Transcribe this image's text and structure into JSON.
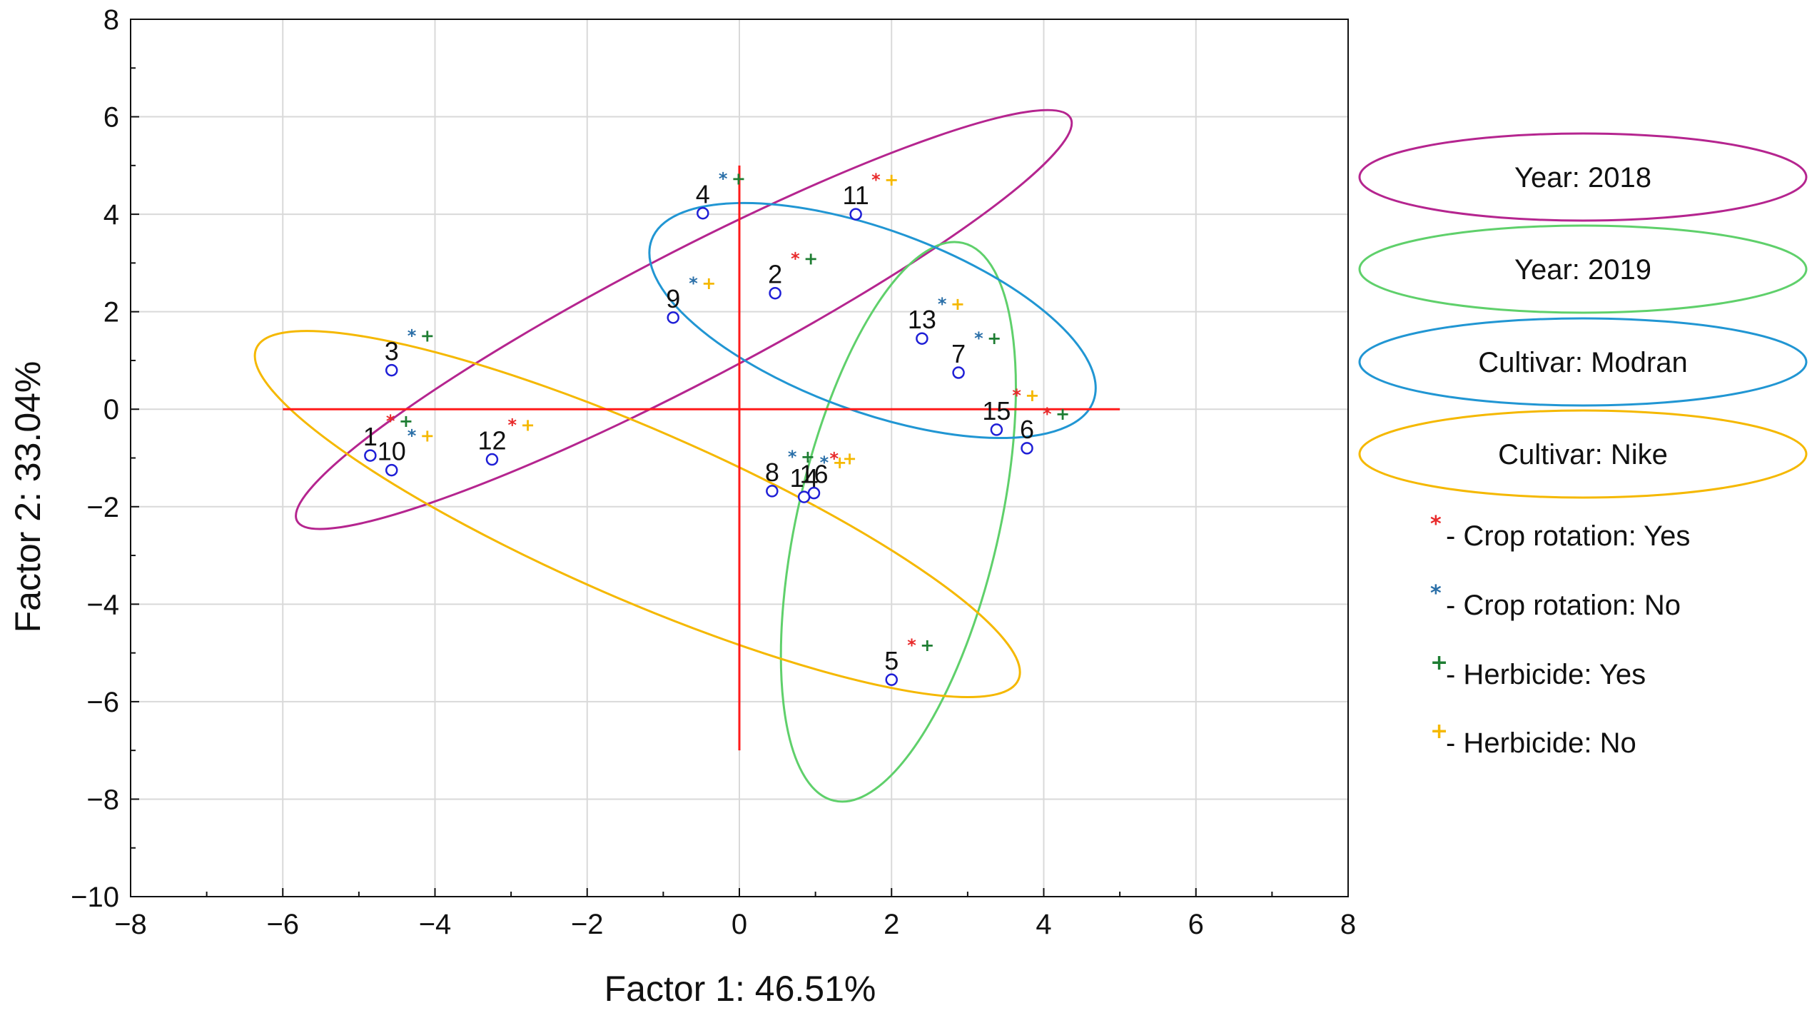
{
  "chart_data": {
    "type": "scatter",
    "xlabel": "Factor 1: 46.51%",
    "ylabel": "Factor 2: 33.04%",
    "xlim": [
      -8,
      8
    ],
    "ylim": [
      -10,
      8
    ],
    "xticks": [
      -8,
      -6,
      -4,
      -2,
      0,
      2,
      4,
      6,
      8
    ],
    "yticks": [
      -10,
      -8,
      -6,
      -4,
      -2,
      0,
      2,
      4,
      6,
      8
    ],
    "xtick_labels": [
      "−8",
      "−6",
      "−4",
      "−2",
      "0",
      "2",
      "4",
      "6",
      "8"
    ],
    "ytick_labels": [
      "−10",
      "−8",
      "−6",
      "−4",
      "−2",
      "0",
      "2",
      "4",
      "6",
      "8"
    ],
    "grid": true,
    "crosshair": {
      "h": [
        -6,
        5
      ],
      "v": [
        -7,
        5
      ]
    },
    "points": [
      {
        "label": "1",
        "x": -4.85,
        "y": -0.95,
        "rotation": "Yes",
        "herbicide": "Yes"
      },
      {
        "label": "2",
        "x": 0.47,
        "y": 2.38,
        "rotation": "Yes",
        "herbicide": "Yes"
      },
      {
        "label": "3",
        "x": -4.57,
        "y": 0.8,
        "rotation": "No",
        "herbicide": "Yes"
      },
      {
        "label": "4",
        "x": -0.48,
        "y": 4.02,
        "rotation": "No",
        "herbicide": "Yes"
      },
      {
        "label": "5",
        "x": 2.0,
        "y": -5.55,
        "rotation": "Yes",
        "herbicide": "Yes"
      },
      {
        "label": "6",
        "x": 3.78,
        "y": -0.8,
        "rotation": "Yes",
        "herbicide": "Yes"
      },
      {
        "label": "7",
        "x": 2.88,
        "y": 0.75,
        "rotation": "No",
        "herbicide": "Yes"
      },
      {
        "label": "8",
        "x": 0.43,
        "y": -1.68,
        "rotation": "No",
        "herbicide": "Yes"
      },
      {
        "label": "9",
        "x": -0.87,
        "y": 1.88,
        "rotation": "No",
        "herbicide": "No"
      },
      {
        "label": "10",
        "x": -4.57,
        "y": -1.25,
        "rotation": "No",
        "herbicide": "No"
      },
      {
        "label": "11",
        "x": 1.53,
        "y": 4.0,
        "rotation": "Yes",
        "herbicide": "No"
      },
      {
        "label": "12",
        "x": -3.25,
        "y": -1.03,
        "rotation": "Yes",
        "herbicide": "No"
      },
      {
        "label": "13",
        "x": 2.4,
        "y": 1.45,
        "rotation": "No",
        "herbicide": "No"
      },
      {
        "label": "14",
        "x": 0.85,
        "y": -1.8,
        "rotation": "No",
        "herbicide": "No"
      },
      {
        "label": "15",
        "x": 3.38,
        "y": -0.42,
        "rotation": "Yes",
        "herbicide": "No"
      },
      {
        "label": "16",
        "x": 0.98,
        "y": -1.72,
        "rotation": "Yes",
        "herbicide": "No"
      }
    ],
    "ellipses": [
      {
        "name": "Year: 2018",
        "color": "#b5258f",
        "cx": -0.73,
        "cy": 1.84,
        "rx": 5.73,
        "ry": 1.33,
        "angle_deg": 27.5
      },
      {
        "name": "Year: 2019",
        "color": "#5fd06b",
        "cx": 2.09,
        "cy": -2.31,
        "rx": 3.76,
        "ry": 2.07,
        "angle_deg": 77
      },
      {
        "name": "Cultivar: Modran",
        "color": "#2196d3",
        "cx": 1.75,
        "cy": 1.82,
        "rx": 3.09,
        "ry": 1.87,
        "angle_deg": -20
      },
      {
        "name": "Cultivar: Nike",
        "color": "#f5b800",
        "cx": -1.34,
        "cy": -2.15,
        "rx": 5.46,
        "ry": 1.74,
        "angle_deg": -23.5
      }
    ],
    "legend": {
      "position": "right",
      "items": [
        {
          "text": "Year: 2018",
          "color": "#b5258f"
        },
        {
          "text": "Year: 2019",
          "color": "#5fd06b"
        },
        {
          "text": "Cultivar: Modran",
          "color": "#2196d3"
        },
        {
          "text": "Cultivar: Nike",
          "color": "#f5b800"
        }
      ],
      "markers": [
        {
          "symbol": "*",
          "color": "#e8292a",
          "text": "- Crop rotation: Yes"
        },
        {
          "symbol": "*",
          "color": "#2a6fa8",
          "text": "- Crop rotation: No"
        },
        {
          "symbol": "+",
          "color": "#1e7d32",
          "text": "- Herbicide: Yes"
        },
        {
          "symbol": "+",
          "color": "#f5b800",
          "text": "- Herbicide: No"
        }
      ]
    },
    "colors": {
      "rotation_yes": "#e8292a",
      "rotation_no": "#2a6fa8",
      "herbicide_yes": "#1e7d32",
      "herbicide_no": "#f5b800",
      "point": "#1f1fd6",
      "crosshair": "#ff1a1a"
    }
  }
}
